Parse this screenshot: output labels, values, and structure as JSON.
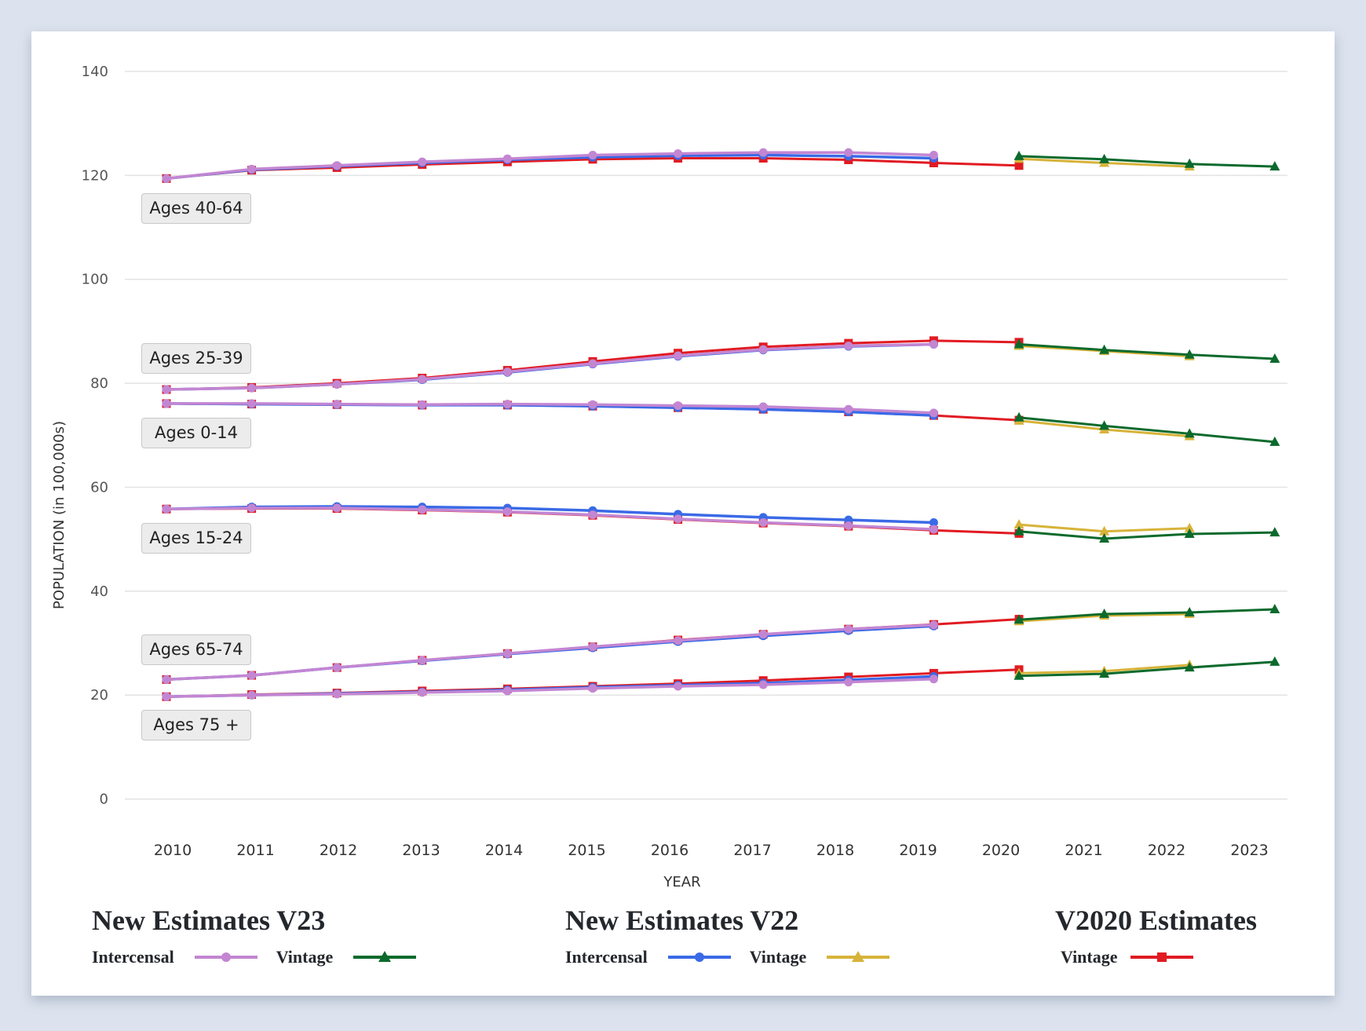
{
  "chart_data": {
    "type": "line",
    "xlabel": "YEAR",
    "ylabel": "POPULATION (in 100,000s)",
    "ylim": [
      0,
      140
    ],
    "yticks": [
      0,
      20,
      40,
      60,
      80,
      100,
      120,
      140
    ],
    "categories": [
      "2010",
      "2011",
      "2012",
      "2013",
      "2014",
      "2015",
      "2016",
      "2017",
      "2018",
      "2019",
      "2020",
      "2021",
      "2022",
      "2023"
    ],
    "grid": true,
    "series_styles": {
      "v23_intercensal": {
        "color": "#c386d2",
        "marker": "circle"
      },
      "v23_vintage": {
        "color": "#0b6a2c",
        "marker": "triangle"
      },
      "v22_intercensal": {
        "color": "#3a6ae6",
        "marker": "circle"
      },
      "v22_vintage": {
        "color": "#d7b33a",
        "marker": "triangle"
      },
      "v2020_vintage": {
        "color": "#e11b22",
        "marker": "square"
      }
    },
    "groups": [
      {
        "label": "Ages 40-64",
        "v2020_vintage": [
          119.4,
          121.0,
          121.5,
          122.1,
          122.6,
          123.1,
          123.3,
          123.3,
          123.0,
          122.4,
          121.9
        ],
        "v22_intercensal": [
          119.4,
          121.1,
          121.8,
          122.4,
          123.0,
          123.5,
          123.8,
          123.9,
          123.7,
          123.3
        ],
        "v23_intercensal": [
          119.4,
          121.2,
          121.9,
          122.6,
          123.2,
          123.9,
          124.2,
          124.4,
          124.4,
          123.9
        ],
        "v22_vintage": [
          123.2,
          122.4,
          121.7
        ],
        "v23_vintage": [
          123.7,
          123.1,
          122.2,
          121.7
        ]
      },
      {
        "label": "Ages 25-39",
        "v2020_vintage": [
          78.8,
          79.2,
          80.0,
          81.0,
          82.5,
          84.2,
          85.8,
          87.0,
          87.7,
          88.2,
          87.9
        ],
        "v22_intercensal": [
          78.8,
          79.1,
          79.8,
          80.7,
          82.1,
          83.7,
          85.2,
          86.4,
          87.1,
          87.5
        ],
        "v23_intercensal": [
          78.8,
          79.1,
          79.8,
          80.8,
          82.2,
          83.8,
          85.3,
          86.5,
          87.2,
          87.5
        ],
        "v22_vintage": [
          87.2,
          86.2,
          85.2
        ],
        "v23_vintage": [
          87.5,
          86.4,
          85.5,
          84.7
        ]
      },
      {
        "label": "Ages 0-14",
        "v2020_vintage": [
          76.1,
          76.0,
          75.9,
          75.8,
          75.8,
          75.6,
          75.3,
          75.0,
          74.5,
          73.8,
          72.9
        ],
        "v22_intercensal": [
          76.1,
          76.0,
          75.9,
          75.8,
          75.8,
          75.6,
          75.3,
          75.0,
          74.5,
          73.8
        ],
        "v23_intercensal": [
          76.1,
          76.1,
          76.0,
          75.9,
          76.0,
          75.9,
          75.7,
          75.5,
          75.0,
          74.3
        ],
        "v22_vintage": [
          72.8,
          71.1,
          69.8
        ],
        "v23_vintage": [
          73.4,
          71.8,
          70.3,
          68.7
        ]
      },
      {
        "label": "Ages 15-24",
        "v2020_vintage": [
          55.8,
          55.9,
          55.9,
          55.6,
          55.2,
          54.6,
          53.8,
          53.1,
          52.5,
          51.7,
          51.1
        ],
        "v22_intercensal": [
          55.8,
          56.2,
          56.3,
          56.2,
          56.0,
          55.5,
          54.8,
          54.2,
          53.7,
          53.2
        ],
        "v23_intercensal": [
          55.8,
          56.0,
          56.0,
          55.7,
          55.3,
          54.7,
          53.9,
          53.2,
          52.6,
          51.9
        ],
        "v22_vintage": [
          52.8,
          51.5,
          52.1
        ],
        "v23_vintage": [
          51.5,
          50.1,
          51.0,
          51.3
        ]
      },
      {
        "label": "Ages 65-74",
        "v2020_vintage": [
          23.0,
          23.8,
          25.3,
          26.7,
          28.0,
          29.3,
          30.6,
          31.7,
          32.7,
          33.6,
          34.6
        ],
        "v22_intercensal": [
          23.0,
          23.8,
          25.3,
          26.6,
          27.9,
          29.1,
          30.3,
          31.4,
          32.4,
          33.3
        ],
        "v23_intercensal": [
          23.0,
          23.8,
          25.3,
          26.7,
          28.0,
          29.3,
          30.5,
          31.7,
          32.7,
          33.5
        ],
        "v22_vintage": [
          34.2,
          35.3,
          35.6
        ],
        "v23_vintage": [
          34.5,
          35.6,
          35.9,
          36.5
        ]
      },
      {
        "label": "Ages 75 +",
        "v2020_vintage": [
          19.7,
          20.1,
          20.4,
          20.8,
          21.2,
          21.7,
          22.2,
          22.8,
          23.5,
          24.2,
          24.9
        ],
        "v22_intercensal": [
          19.7,
          20.0,
          20.3,
          20.6,
          21.0,
          21.5,
          21.9,
          22.3,
          22.9,
          23.6
        ],
        "v23_intercensal": [
          19.7,
          20.0,
          20.2,
          20.5,
          20.8,
          21.3,
          21.7,
          22.0,
          22.5,
          23.1
        ],
        "v22_vintage": [
          24.2,
          24.6,
          25.8
        ],
        "v23_vintage": [
          23.7,
          24.1,
          25.3,
          26.4
        ]
      }
    ]
  },
  "legend": {
    "v23": {
      "title": "New Estimates V23",
      "intercensal": "Intercensal",
      "vintage": "Vintage"
    },
    "v22": {
      "title": "New Estimates V22",
      "intercensal": "Intercensal",
      "vintage": "Vintage"
    },
    "v2020": {
      "title": "V2020 Estimates",
      "vintage": "Vintage"
    }
  }
}
